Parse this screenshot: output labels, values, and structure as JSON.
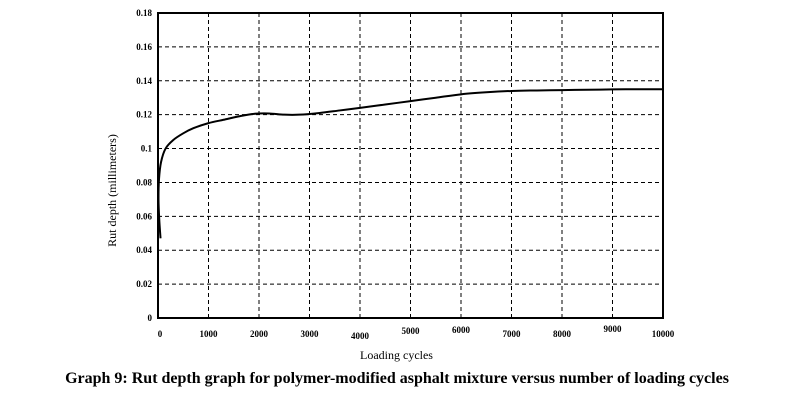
{
  "caption": "Graph 9: Rut depth graph for polymer-modified asphalt mixture versus number of loading cycles",
  "chart_data": {
    "type": "line",
    "title": "",
    "xlabel": "Loading cycles",
    "ylabel": "Rut depth (millimeters)",
    "xlim": [
      0,
      10000
    ],
    "ylim": [
      0,
      0.18
    ],
    "xticks": [
      0,
      1000,
      2000,
      3000,
      4000,
      5000,
      6000,
      7000,
      8000,
      9000,
      10000
    ],
    "yticks": [
      0,
      0.02,
      0.04,
      0.06,
      0.08,
      0.1,
      0.12,
      0.14,
      0.16,
      0.18
    ],
    "xtick_labels": [
      "0",
      "1000",
      "2000",
      "3000",
      "4000",
      "5000",
      "6000",
      "7000",
      "8000",
      "9000",
      "10000"
    ],
    "ytick_labels": [
      "0",
      "0.02",
      "0.04",
      "0.06",
      "0.08",
      "0.1",
      "0.12",
      "0.14",
      "0.16",
      "0.18"
    ],
    "grid": true,
    "legend": "none",
    "line_color": "#000000",
    "series": [
      {
        "x": [
          50,
          25,
          10,
          20,
          60,
          150,
          300,
          500,
          700,
          1000,
          1300,
          1600,
          1900,
          2200,
          2500,
          2800,
          3200,
          3600,
          4000,
          4500,
          5000,
          5500,
          6000,
          6500,
          7000,
          7500,
          8000,
          8500,
          9000,
          9500,
          10000
        ],
        "y": [
          0.047,
          0.058,
          0.07,
          0.082,
          0.092,
          0.1,
          0.105,
          0.109,
          0.112,
          0.115,
          0.117,
          0.119,
          0.1205,
          0.1207,
          0.12,
          0.12,
          0.121,
          0.1225,
          0.124,
          0.126,
          0.128,
          0.13,
          0.132,
          0.1332,
          0.134,
          0.1343,
          0.1345,
          0.1347,
          0.1349,
          0.135,
          0.135
        ]
      }
    ]
  }
}
